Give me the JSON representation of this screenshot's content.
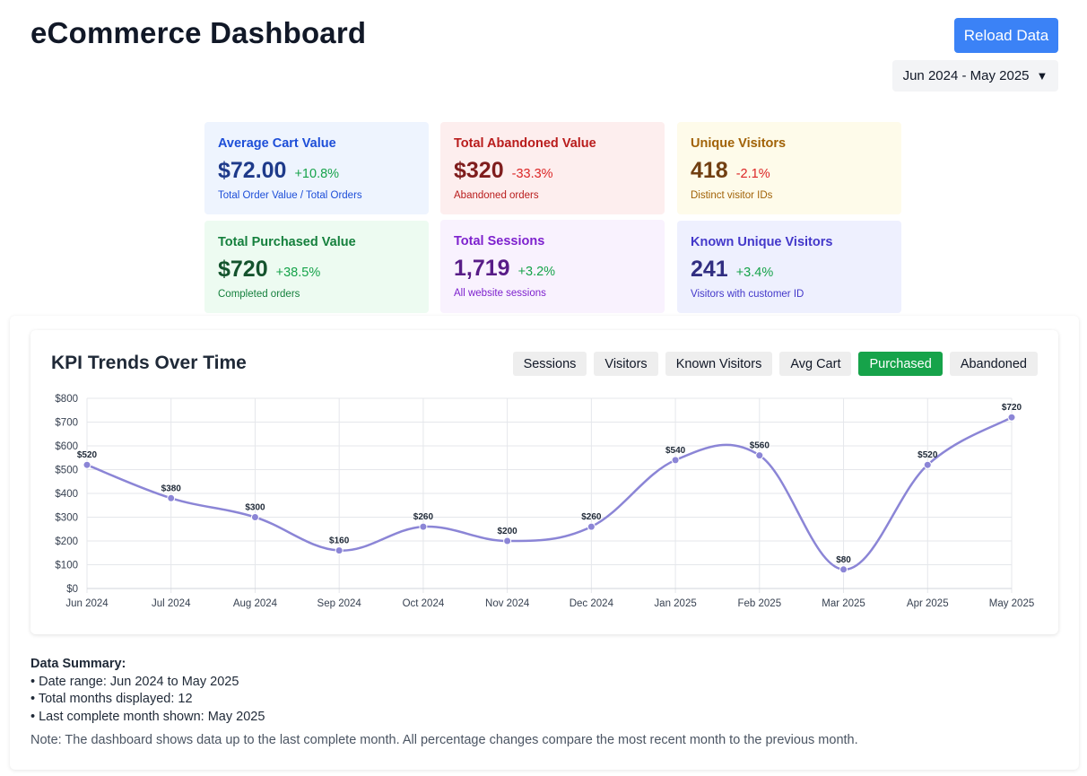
{
  "header": {
    "title": "eCommerce Dashboard",
    "reload_label": "Reload Data",
    "date_range": "Jun 2024 - May 2025",
    "caret": "▼"
  },
  "kpis": {
    "avg_cart": {
      "label": "Average Cart Value",
      "value": "$72.00",
      "change": "+10.8%",
      "sub": "Total Order Value / Total Orders"
    },
    "abandoned": {
      "label": "Total Abandoned Value",
      "value": "$320",
      "change": "-33.3%",
      "sub": "Abandoned orders"
    },
    "unique_visitors": {
      "label": "Unique Visitors",
      "value": "418",
      "change": "-2.1%",
      "sub": "Distinct visitor IDs"
    },
    "purchased": {
      "label": "Total Purchased Value",
      "value": "$720",
      "change": "+38.5%",
      "sub": "Completed orders"
    },
    "sessions": {
      "label": "Total Sessions",
      "value": "1,719",
      "change": "+3.2%",
      "sub": "All website sessions"
    },
    "known_visitors": {
      "label": "Known Unique Visitors",
      "value": "241",
      "change": "+3.4%",
      "sub": "Visitors with customer ID"
    }
  },
  "chart": {
    "title": "KPI Trends Over Time",
    "buttons": [
      "Sessions",
      "Visitors",
      "Known Visitors",
      "Avg Cart",
      "Purchased",
      "Abandoned"
    ],
    "active_button": "Purchased",
    "line_color": "#8b85d6"
  },
  "chart_data": {
    "type": "line",
    "title": "KPI Trends Over Time",
    "series_name": "Purchased",
    "categories": [
      "Jun 2024",
      "Jul 2024",
      "Aug 2024",
      "Sep 2024",
      "Oct 2024",
      "Nov 2024",
      "Dec 2024",
      "Jan 2025",
      "Feb 2025",
      "Mar 2025",
      "Apr 2025",
      "May 2025"
    ],
    "values": [
      520,
      380,
      300,
      160,
      260,
      200,
      260,
      540,
      560,
      80,
      520,
      720
    ],
    "value_labels": [
      "$520",
      "$380",
      "$300",
      "$160",
      "$260",
      "$200",
      "$260",
      "$540",
      "$560",
      "$80",
      "$520",
      "$720"
    ],
    "yticks": [
      0,
      100,
      200,
      300,
      400,
      500,
      600,
      700,
      800
    ],
    "ytick_labels": [
      "$0",
      "$100",
      "$200",
      "$300",
      "$400",
      "$500",
      "$600",
      "$700",
      "$800"
    ],
    "ylim": [
      0,
      800
    ],
    "grid": true
  },
  "summary": {
    "title": "Data Summary:",
    "lines": [
      "Date range: Jun 2024 to May 2025",
      "Total months displayed: 12",
      "Last complete month shown: May 2025"
    ],
    "note": "Note: The dashboard shows data up to the last complete month. All percentage changes compare the most recent month to the previous month."
  }
}
